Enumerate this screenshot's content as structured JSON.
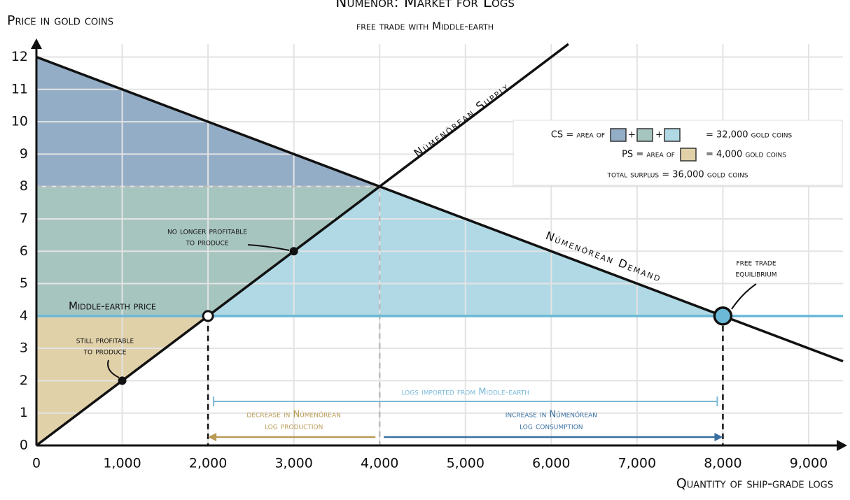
{
  "chart_data": {
    "type": "line",
    "title": "Númenor: Market for Logs",
    "subtitle": "free trade with Middle-earth",
    "y_label": "Price in gold coins",
    "x_label": "Quantity of ship-grade logs",
    "xlim": [
      0,
      9400
    ],
    "ylim": [
      0,
      12.4
    ],
    "xticks": [
      0,
      {
        "value": 1000,
        "label": "1,000"
      },
      {
        "value": 2000,
        "label": "2,000"
      },
      {
        "value": 3000,
        "label": "3,000"
      },
      {
        "value": 4000,
        "label": "4,000"
      },
      {
        "value": 5000,
        "label": "5,000"
      },
      {
        "value": 6000,
        "label": "6,000"
      },
      {
        "value": 7000,
        "label": "7,000"
      },
      {
        "value": 8000,
        "label": "8,000"
      },
      {
        "value": 9000,
        "label": "9,000"
      }
    ],
    "yticks": [
      0,
      1,
      2,
      3,
      4,
      5,
      6,
      7,
      8,
      9,
      10,
      11,
      12
    ],
    "grid": true,
    "areas": [
      {
        "color": "#94adc7",
        "x": [
          0,
          0,
          4000
        ],
        "values": [
          12,
          8,
          8
        ]
      },
      {
        "color": "#a7c5bf",
        "x": [
          0,
          4000,
          2000,
          0
        ],
        "values": [
          8,
          8,
          4,
          4
        ]
      },
      {
        "color": "#b0d9e5",
        "x": [
          2000,
          4000,
          8000
        ],
        "values": [
          4,
          8,
          4
        ]
      },
      {
        "color": "#e1d1a9",
        "x": [
          0,
          2000,
          0
        ],
        "values": [
          0,
          4,
          4
        ]
      }
    ],
    "series": [
      {
        "name": "Númenórean Supply",
        "color": "#111111",
        "x": [
          0,
          6200
        ],
        "values": [
          0,
          12.4
        ]
      },
      {
        "name": "Númenórean Demand",
        "color": "#111111",
        "x": [
          0,
          9400
        ],
        "values": [
          12,
          2.6
        ]
      },
      {
        "name": "Middle-earth price",
        "color": "#6bb8d7",
        "x": [
          0,
          9400
        ],
        "values": [
          4,
          4
        ]
      }
    ],
    "points": [
      {
        "x": 1000,
        "y": 2,
        "style": "dot"
      },
      {
        "x": 3000,
        "y": 6,
        "style": "dot"
      },
      {
        "x": 2000,
        "y": 4,
        "style": "open",
        "drop": "dash"
      },
      {
        "x": 8000,
        "y": 4,
        "style": "big",
        "drop": "dash"
      },
      {
        "x": 4000,
        "y": 8,
        "style": "none",
        "drop": "grey"
      }
    ],
    "arrows": [
      {
        "label": "logs imported from Middle-earth",
        "from": 2000,
        "to": 8000,
        "y": 1.36,
        "color": "#7ab9d8",
        "style": "span"
      },
      {
        "label": [
          "decrease in Númenórean",
          "log production"
        ],
        "from": 4000,
        "to": 2000,
        "y": 0.26,
        "color": "#b99b55",
        "style": "arrow"
      },
      {
        "label": [
          "increase in Númenórean",
          "log consumption"
        ],
        "from": 4000,
        "to": 8000,
        "y": 0.26,
        "color": "#3a6fa0",
        "style": "arrow"
      }
    ],
    "notes": {
      "no_longer": [
        "no longer profitable",
        "to produce"
      ],
      "still": [
        "still profitable",
        "to produce"
      ],
      "equilibrium": [
        "free trade",
        "equilibrium"
      ]
    },
    "legend": {
      "cs_prefix": "CS = area of",
      "plus": "+",
      "cs_suffix": "= 32,000 gold coins",
      "ps_prefix": "PS = area of",
      "ps_suffix": "= 4,000 gold coins",
      "total": "total surplus = 36,000 gold coins"
    }
  }
}
